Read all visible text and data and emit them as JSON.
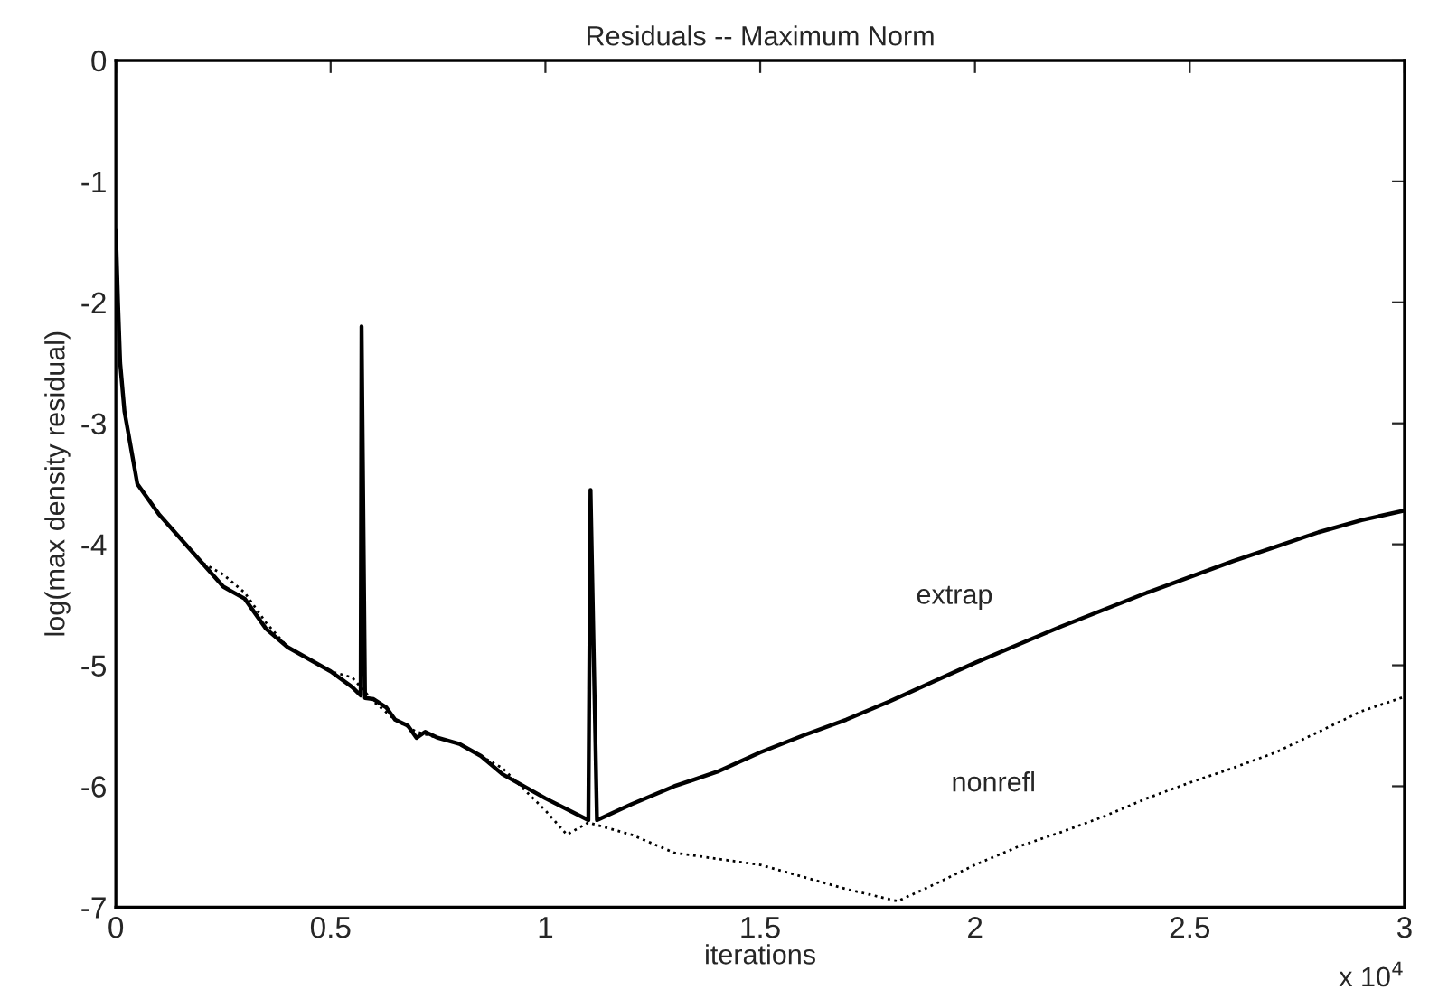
{
  "chart_data": {
    "type": "line",
    "title": "Residuals -- Maximum Norm",
    "xlabel": "iterations",
    "ylabel": "log(max density residual)",
    "annotations": [
      "x 10$^{4}$"
    ],
    "xlim": [
      0,
      3
    ],
    "xticks": [
      0,
      0.5,
      1,
      1.5,
      2,
      2.5,
      3
    ],
    "ylim": [
      -7,
      0
    ],
    "yticks": [
      -7,
      -6,
      -5,
      -4,
      -3,
      -2,
      -1,
      0
    ],
    "grid": false,
    "marker": "none",
    "series": [
      {
        "name": "extrap",
        "color": "#000000",
        "line_style": "solid",
        "x": [
          0,
          0.005,
          0.01,
          0.02,
          0.05,
          0.1,
          0.15,
          0.2,
          0.25,
          0.3,
          0.35,
          0.4,
          0.5,
          0.55,
          0.57,
          0.572,
          0.58,
          0.6,
          0.63,
          0.65,
          0.68,
          0.7,
          0.72,
          0.75,
          0.8,
          0.85,
          0.9,
          1.0,
          1.1,
          1.105,
          1.12,
          1.2,
          1.3,
          1.4,
          1.5,
          1.6,
          1.7,
          1.8,
          1.9,
          2.0,
          2.1,
          2.2,
          2.3,
          2.4,
          2.5,
          2.6,
          2.7,
          2.8,
          2.9,
          3.0
        ],
        "values": [
          -1.4,
          -2.0,
          -2.5,
          -2.9,
          -3.5,
          -3.75,
          -3.95,
          -4.15,
          -4.35,
          -4.45,
          -4.7,
          -4.85,
          -5.05,
          -5.18,
          -5.25,
          -2.2,
          -5.27,
          -5.28,
          -5.35,
          -5.45,
          -5.5,
          -5.6,
          -5.55,
          -5.6,
          -5.65,
          -5.75,
          -5.9,
          -6.1,
          -6.28,
          -3.55,
          -6.28,
          -6.15,
          -6.0,
          -5.88,
          -5.72,
          -5.58,
          -5.45,
          -5.3,
          -5.14,
          -4.98,
          -4.83,
          -4.68,
          -4.54,
          -4.4,
          -4.27,
          -4.14,
          -4.02,
          -3.9,
          -3.8,
          -3.72
        ]
      },
      {
        "name": "nonrefl",
        "color": "#000000",
        "line_style": "dotted",
        "x": [
          0,
          0.005,
          0.01,
          0.02,
          0.05,
          0.1,
          0.15,
          0.2,
          0.25,
          0.3,
          0.35,
          0.4,
          0.5,
          0.55,
          0.6,
          0.65,
          0.7,
          0.8,
          0.9,
          1.0,
          1.05,
          1.1,
          1.2,
          1.3,
          1.4,
          1.5,
          1.6,
          1.7,
          1.82,
          1.9,
          2.0,
          2.1,
          2.2,
          2.3,
          2.4,
          2.5,
          2.6,
          2.7,
          2.8,
          2.9,
          3.0
        ],
        "values": [
          -1.4,
          -2.0,
          -2.5,
          -2.9,
          -3.5,
          -3.75,
          -3.95,
          -4.15,
          -4.25,
          -4.4,
          -4.65,
          -4.85,
          -5.05,
          -5.1,
          -5.3,
          -5.45,
          -5.55,
          -5.65,
          -5.85,
          -6.2,
          -6.4,
          -6.3,
          -6.4,
          -6.55,
          -6.6,
          -6.65,
          -6.75,
          -6.85,
          -6.95,
          -6.82,
          -6.65,
          -6.5,
          -6.38,
          -6.25,
          -6.1,
          -5.97,
          -5.85,
          -5.72,
          -5.55,
          -5.38,
          -5.26
        ]
      }
    ]
  }
}
